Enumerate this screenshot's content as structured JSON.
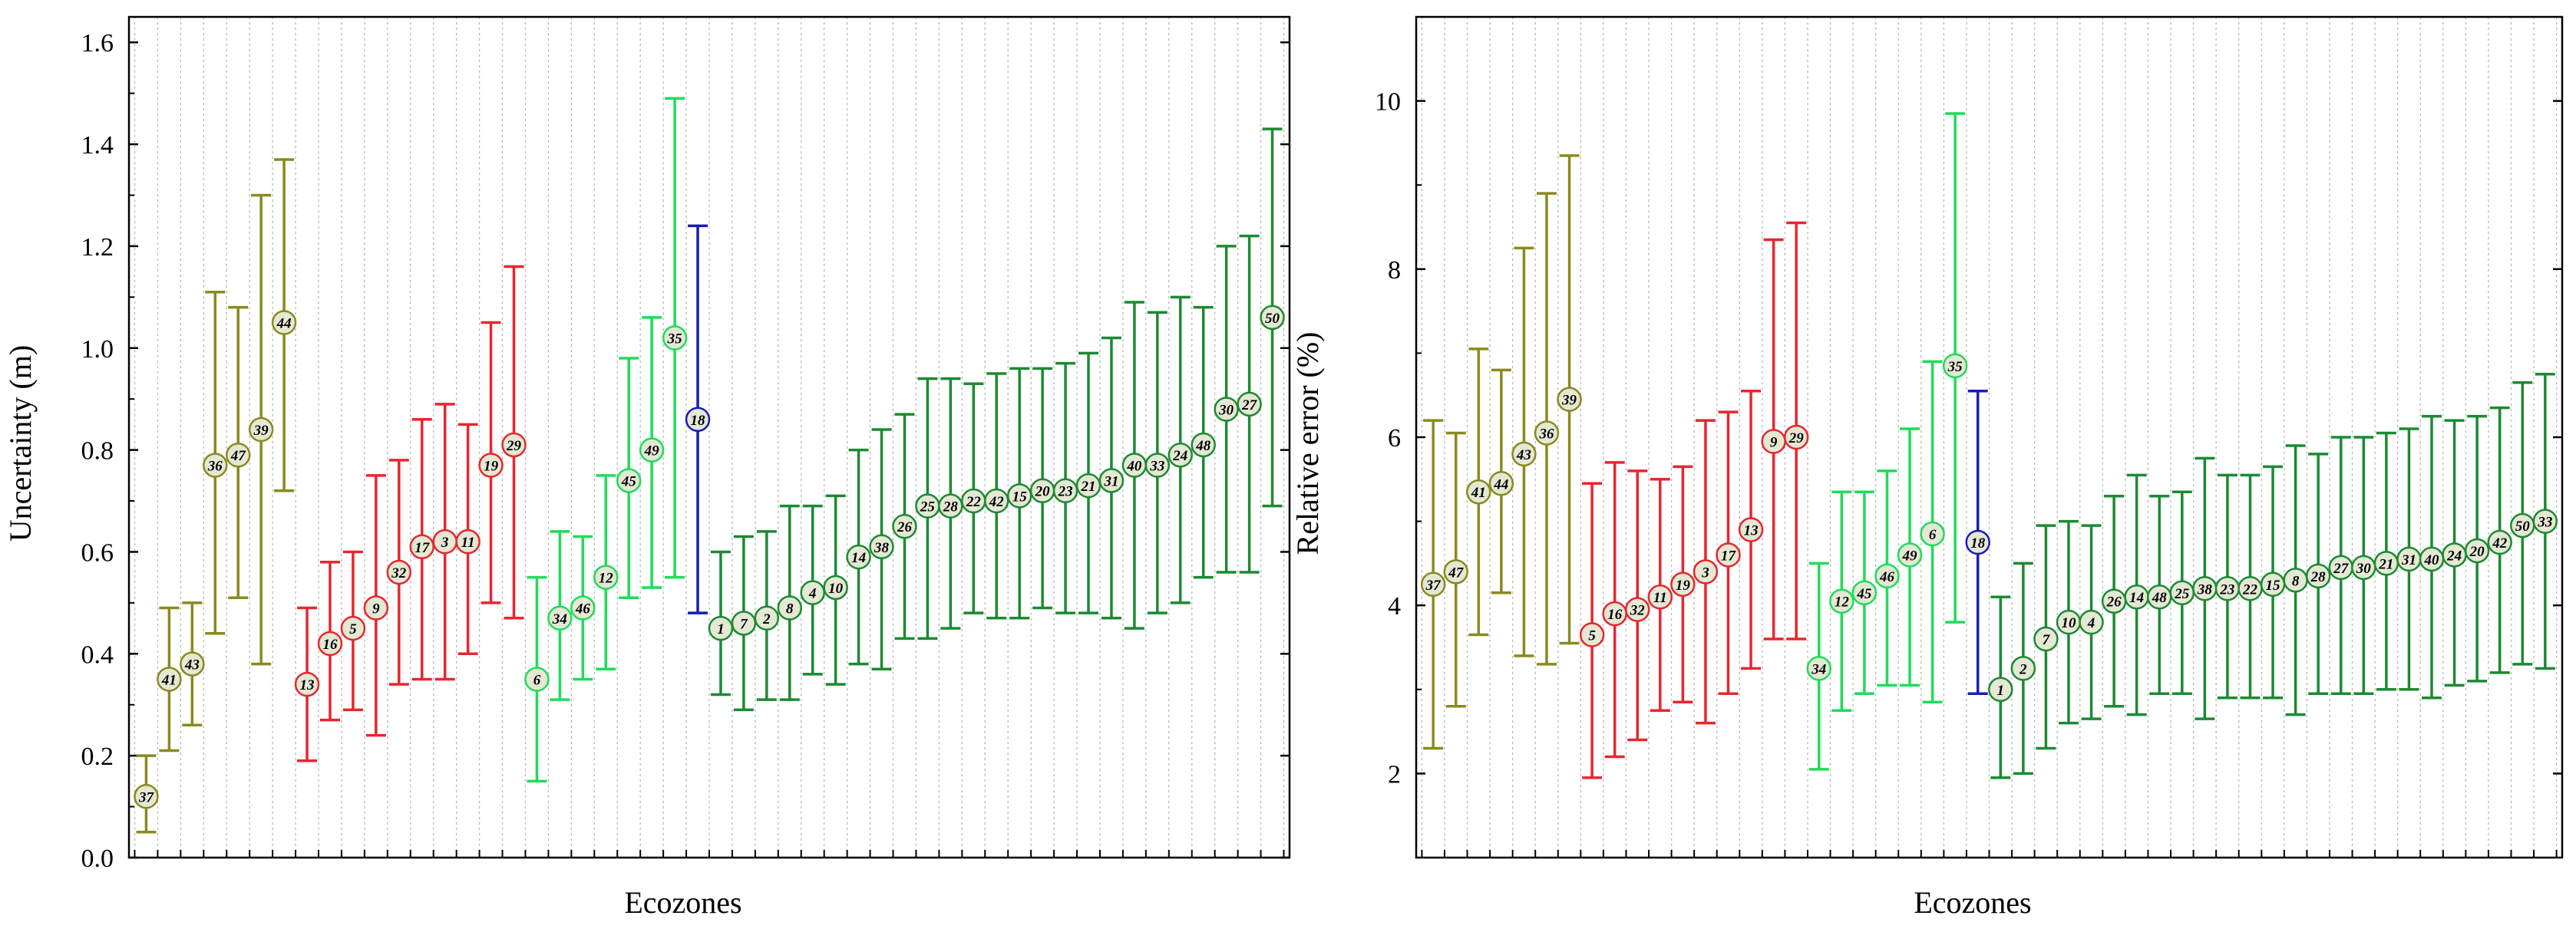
{
  "colors": {
    "olive": "#8a8a1e",
    "red": "#e8262d",
    "light_green": "#1fdc5a",
    "blue": "#1b1bb5",
    "dark_green": "#1c8a32",
    "marker_fill": "#e4e8d4",
    "grid": "#b8b8b8"
  },
  "chart_data": [
    {
      "type": "errorbar",
      "title": "",
      "xlabel": "Ecozones",
      "ylabel": "Uncertainty (m)",
      "ylim": [
        0.0,
        1.65
      ],
      "yticks": [
        0.0,
        0.2,
        0.4,
        0.6,
        0.8,
        1.0,
        1.2,
        1.4,
        1.6
      ],
      "ytick_labels": [
        "0.0",
        "0.2",
        "0.4",
        "0.6",
        "0.8",
        "1.0",
        "1.2",
        "1.4",
        "1.6"
      ],
      "grid": "vertical dotted",
      "points": [
        {
          "label": "37",
          "value": 0.12,
          "low": 0.05,
          "high": 0.2,
          "group": "olive"
        },
        {
          "label": "41",
          "value": 0.35,
          "low": 0.21,
          "high": 0.49,
          "group": "olive"
        },
        {
          "label": "43",
          "value": 0.38,
          "low": 0.26,
          "high": 0.5,
          "group": "olive"
        },
        {
          "label": "36",
          "value": 0.77,
          "low": 0.44,
          "high": 1.11,
          "group": "olive"
        },
        {
          "label": "47",
          "value": 0.79,
          "low": 0.51,
          "high": 1.08,
          "group": "olive"
        },
        {
          "label": "39",
          "value": 0.84,
          "low": 0.38,
          "high": 1.3,
          "group": "olive"
        },
        {
          "label": "44",
          "value": 1.05,
          "low": 0.72,
          "high": 1.37,
          "group": "olive"
        },
        {
          "label": "13",
          "value": 0.34,
          "low": 0.19,
          "high": 0.49,
          "group": "red"
        },
        {
          "label": "16",
          "value": 0.42,
          "low": 0.27,
          "high": 0.58,
          "group": "red"
        },
        {
          "label": "5",
          "value": 0.45,
          "low": 0.29,
          "high": 0.6,
          "group": "red"
        },
        {
          "label": "9",
          "value": 0.49,
          "low": 0.24,
          "high": 0.75,
          "group": "red"
        },
        {
          "label": "32",
          "value": 0.56,
          "low": 0.34,
          "high": 0.78,
          "group": "red"
        },
        {
          "label": "17",
          "value": 0.61,
          "low": 0.35,
          "high": 0.86,
          "group": "red"
        },
        {
          "label": "3",
          "value": 0.62,
          "low": 0.35,
          "high": 0.89,
          "group": "red"
        },
        {
          "label": "11",
          "value": 0.62,
          "low": 0.4,
          "high": 0.85,
          "group": "red"
        },
        {
          "label": "19",
          "value": 0.77,
          "low": 0.5,
          "high": 1.05,
          "group": "red"
        },
        {
          "label": "29",
          "value": 0.81,
          "low": 0.47,
          "high": 1.16,
          "group": "red"
        },
        {
          "label": "6",
          "value": 0.35,
          "low": 0.15,
          "high": 0.55,
          "group": "light_green"
        },
        {
          "label": "34",
          "value": 0.47,
          "low": 0.31,
          "high": 0.64,
          "group": "light_green"
        },
        {
          "label": "46",
          "value": 0.49,
          "low": 0.35,
          "high": 0.63,
          "group": "light_green"
        },
        {
          "label": "12",
          "value": 0.55,
          "low": 0.37,
          "high": 0.75,
          "group": "light_green"
        },
        {
          "label": "45",
          "value": 0.74,
          "low": 0.51,
          "high": 0.98,
          "group": "light_green"
        },
        {
          "label": "49",
          "value": 0.8,
          "low": 0.53,
          "high": 1.06,
          "group": "light_green"
        },
        {
          "label": "35",
          "value": 1.02,
          "low": 0.55,
          "high": 1.49,
          "group": "light_green"
        },
        {
          "label": "18",
          "value": 0.86,
          "low": 0.48,
          "high": 1.24,
          "group": "blue"
        },
        {
          "label": "1",
          "value": 0.45,
          "low": 0.32,
          "high": 0.6,
          "group": "dark_green"
        },
        {
          "label": "7",
          "value": 0.46,
          "low": 0.29,
          "high": 0.63,
          "group": "dark_green"
        },
        {
          "label": "2",
          "value": 0.47,
          "low": 0.31,
          "high": 0.64,
          "group": "dark_green"
        },
        {
          "label": "8",
          "value": 0.49,
          "low": 0.31,
          "high": 0.69,
          "group": "dark_green"
        },
        {
          "label": "4",
          "value": 0.52,
          "low": 0.36,
          "high": 0.69,
          "group": "dark_green"
        },
        {
          "label": "10",
          "value": 0.53,
          "low": 0.34,
          "high": 0.71,
          "group": "dark_green"
        },
        {
          "label": "14",
          "value": 0.59,
          "low": 0.38,
          "high": 0.8,
          "group": "dark_green"
        },
        {
          "label": "38",
          "value": 0.61,
          "low": 0.37,
          "high": 0.84,
          "group": "dark_green"
        },
        {
          "label": "26",
          "value": 0.65,
          "low": 0.43,
          "high": 0.87,
          "group": "dark_green"
        },
        {
          "label": "25",
          "value": 0.69,
          "low": 0.43,
          "high": 0.94,
          "group": "dark_green"
        },
        {
          "label": "28",
          "value": 0.69,
          "low": 0.45,
          "high": 0.94,
          "group": "dark_green"
        },
        {
          "label": "22",
          "value": 0.7,
          "low": 0.48,
          "high": 0.93,
          "group": "dark_green"
        },
        {
          "label": "42",
          "value": 0.7,
          "low": 0.47,
          "high": 0.95,
          "group": "dark_green"
        },
        {
          "label": "15",
          "value": 0.71,
          "low": 0.47,
          "high": 0.96,
          "group": "dark_green"
        },
        {
          "label": "20",
          "value": 0.72,
          "low": 0.49,
          "high": 0.96,
          "group": "dark_green"
        },
        {
          "label": "23",
          "value": 0.72,
          "low": 0.48,
          "high": 0.97,
          "group": "dark_green"
        },
        {
          "label": "21",
          "value": 0.73,
          "low": 0.48,
          "high": 0.99,
          "group": "dark_green"
        },
        {
          "label": "31",
          "value": 0.74,
          "low": 0.47,
          "high": 1.02,
          "group": "dark_green"
        },
        {
          "label": "40",
          "value": 0.77,
          "low": 0.45,
          "high": 1.09,
          "group": "dark_green"
        },
        {
          "label": "33",
          "value": 0.77,
          "low": 0.48,
          "high": 1.07,
          "group": "dark_green"
        },
        {
          "label": "24",
          "value": 0.79,
          "low": 0.5,
          "high": 1.1,
          "group": "dark_green"
        },
        {
          "label": "48",
          "value": 0.81,
          "low": 0.55,
          "high": 1.08,
          "group": "dark_green"
        },
        {
          "label": "30",
          "value": 0.88,
          "low": 0.56,
          "high": 1.2,
          "group": "dark_green"
        },
        {
          "label": "27",
          "value": 0.89,
          "low": 0.56,
          "high": 1.22,
          "group": "dark_green"
        },
        {
          "label": "50",
          "value": 1.06,
          "low": 0.69,
          "high": 1.43,
          "group": "dark_green"
        }
      ]
    },
    {
      "type": "errorbar",
      "title": "",
      "xlabel": "Ecozones",
      "ylabel": "Relative error (%)",
      "ylim": [
        1.0,
        11.0
      ],
      "yticks": [
        2,
        4,
        6,
        8,
        10
      ],
      "ytick_labels": [
        "2",
        "4",
        "6",
        "8",
        "10"
      ],
      "grid": "vertical dotted",
      "points": [
        {
          "label": "37",
          "value": 4.25,
          "low": 2.3,
          "high": 6.2,
          "group": "olive"
        },
        {
          "label": "47",
          "value": 4.4,
          "low": 2.8,
          "high": 6.05,
          "group": "olive"
        },
        {
          "label": "41",
          "value": 5.35,
          "low": 3.65,
          "high": 7.05,
          "group": "olive"
        },
        {
          "label": "44",
          "value": 5.45,
          "low": 4.15,
          "high": 6.8,
          "group": "olive"
        },
        {
          "label": "43",
          "value": 5.8,
          "low": 3.4,
          "high": 8.25,
          "group": "olive"
        },
        {
          "label": "36",
          "value": 6.05,
          "low": 3.3,
          "high": 8.9,
          "group": "olive"
        },
        {
          "label": "39",
          "value": 6.45,
          "low": 3.55,
          "high": 9.35,
          "group": "olive"
        },
        {
          "label": "5",
          "value": 3.65,
          "low": 1.95,
          "high": 5.45,
          "group": "red"
        },
        {
          "label": "16",
          "value": 3.9,
          "low": 2.2,
          "high": 5.7,
          "group": "red"
        },
        {
          "label": "32",
          "value": 3.95,
          "low": 2.4,
          "high": 5.6,
          "group": "red"
        },
        {
          "label": "11",
          "value": 4.1,
          "low": 2.75,
          "high": 5.5,
          "group": "red"
        },
        {
          "label": "19",
          "value": 4.25,
          "low": 2.85,
          "high": 5.65,
          "group": "red"
        },
        {
          "label": "3",
          "value": 4.4,
          "low": 2.6,
          "high": 6.2,
          "group": "red"
        },
        {
          "label": "17",
          "value": 4.6,
          "low": 2.95,
          "high": 6.3,
          "group": "red"
        },
        {
          "label": "13",
          "value": 4.9,
          "low": 3.25,
          "high": 6.55,
          "group": "red"
        },
        {
          "label": "9",
          "value": 5.95,
          "low": 3.6,
          "high": 8.35,
          "group": "red"
        },
        {
          "label": "29",
          "value": 6.0,
          "low": 3.6,
          "high": 8.55,
          "group": "red"
        },
        {
          "label": "34",
          "value": 3.25,
          "low": 2.05,
          "high": 4.5,
          "group": "light_green"
        },
        {
          "label": "12",
          "value": 4.05,
          "low": 2.75,
          "high": 5.35,
          "group": "light_green"
        },
        {
          "label": "45",
          "value": 4.15,
          "low": 2.95,
          "high": 5.35,
          "group": "light_green"
        },
        {
          "label": "46",
          "value": 4.35,
          "low": 3.05,
          "high": 5.6,
          "group": "light_green"
        },
        {
          "label": "49",
          "value": 4.6,
          "low": 3.05,
          "high": 6.1,
          "group": "light_green"
        },
        {
          "label": "6",
          "value": 4.85,
          "low": 2.85,
          "high": 6.9,
          "group": "light_green"
        },
        {
          "label": "35",
          "value": 6.85,
          "low": 3.8,
          "high": 9.85,
          "group": "light_green"
        },
        {
          "label": "18",
          "value": 4.75,
          "low": 2.95,
          "high": 6.55,
          "group": "blue"
        },
        {
          "label": "1",
          "value": 3.0,
          "low": 1.95,
          "high": 4.1,
          "group": "dark_green"
        },
        {
          "label": "2",
          "value": 3.25,
          "low": 2.0,
          "high": 4.5,
          "group": "dark_green"
        },
        {
          "label": "7",
          "value": 3.6,
          "low": 2.3,
          "high": 4.95,
          "group": "dark_green"
        },
        {
          "label": "10",
          "value": 3.8,
          "low": 2.6,
          "high": 5.0,
          "group": "dark_green"
        },
        {
          "label": "4",
          "value": 3.8,
          "low": 2.65,
          "high": 4.95,
          "group": "dark_green"
        },
        {
          "label": "26",
          "value": 4.05,
          "low": 2.8,
          "high": 5.3,
          "group": "dark_green"
        },
        {
          "label": "14",
          "value": 4.1,
          "low": 2.7,
          "high": 5.55,
          "group": "dark_green"
        },
        {
          "label": "48",
          "value": 4.1,
          "low": 2.95,
          "high": 5.3,
          "group": "dark_green"
        },
        {
          "label": "25",
          "value": 4.15,
          "low": 2.95,
          "high": 5.35,
          "group": "dark_green"
        },
        {
          "label": "38",
          "value": 4.2,
          "low": 2.65,
          "high": 5.75,
          "group": "dark_green"
        },
        {
          "label": "23",
          "value": 4.2,
          "low": 2.9,
          "high": 5.55,
          "group": "dark_green"
        },
        {
          "label": "22",
          "value": 4.2,
          "low": 2.9,
          "high": 5.55,
          "group": "dark_green"
        },
        {
          "label": "15",
          "value": 4.25,
          "low": 2.9,
          "high": 5.65,
          "group": "dark_green"
        },
        {
          "label": "8",
          "value": 4.3,
          "low": 2.7,
          "high": 5.9,
          "group": "dark_green"
        },
        {
          "label": "28",
          "value": 4.35,
          "low": 2.95,
          "high": 5.8,
          "group": "dark_green"
        },
        {
          "label": "27",
          "value": 4.45,
          "low": 2.95,
          "high": 6.0,
          "group": "dark_green"
        },
        {
          "label": "30",
          "value": 4.45,
          "low": 2.95,
          "high": 6.0,
          "group": "dark_green"
        },
        {
          "label": "21",
          "value": 4.5,
          "low": 3.0,
          "high": 6.05,
          "group": "dark_green"
        },
        {
          "label": "31",
          "value": 4.55,
          "low": 3.0,
          "high": 6.1,
          "group": "dark_green"
        },
        {
          "label": "40",
          "value": 4.55,
          "low": 2.9,
          "high": 6.25,
          "group": "dark_green"
        },
        {
          "label": "24",
          "value": 4.6,
          "low": 3.05,
          "high": 6.2,
          "group": "dark_green"
        },
        {
          "label": "20",
          "value": 4.65,
          "low": 3.1,
          "high": 6.25,
          "group": "dark_green"
        },
        {
          "label": "42",
          "value": 4.75,
          "low": 3.2,
          "high": 6.35,
          "group": "dark_green"
        },
        {
          "label": "50",
          "value": 4.95,
          "low": 3.3,
          "high": 6.65,
          "group": "dark_green"
        },
        {
          "label": "33",
          "value": 5.0,
          "low": 3.25,
          "high": 6.75,
          "group": "dark_green"
        }
      ]
    }
  ]
}
